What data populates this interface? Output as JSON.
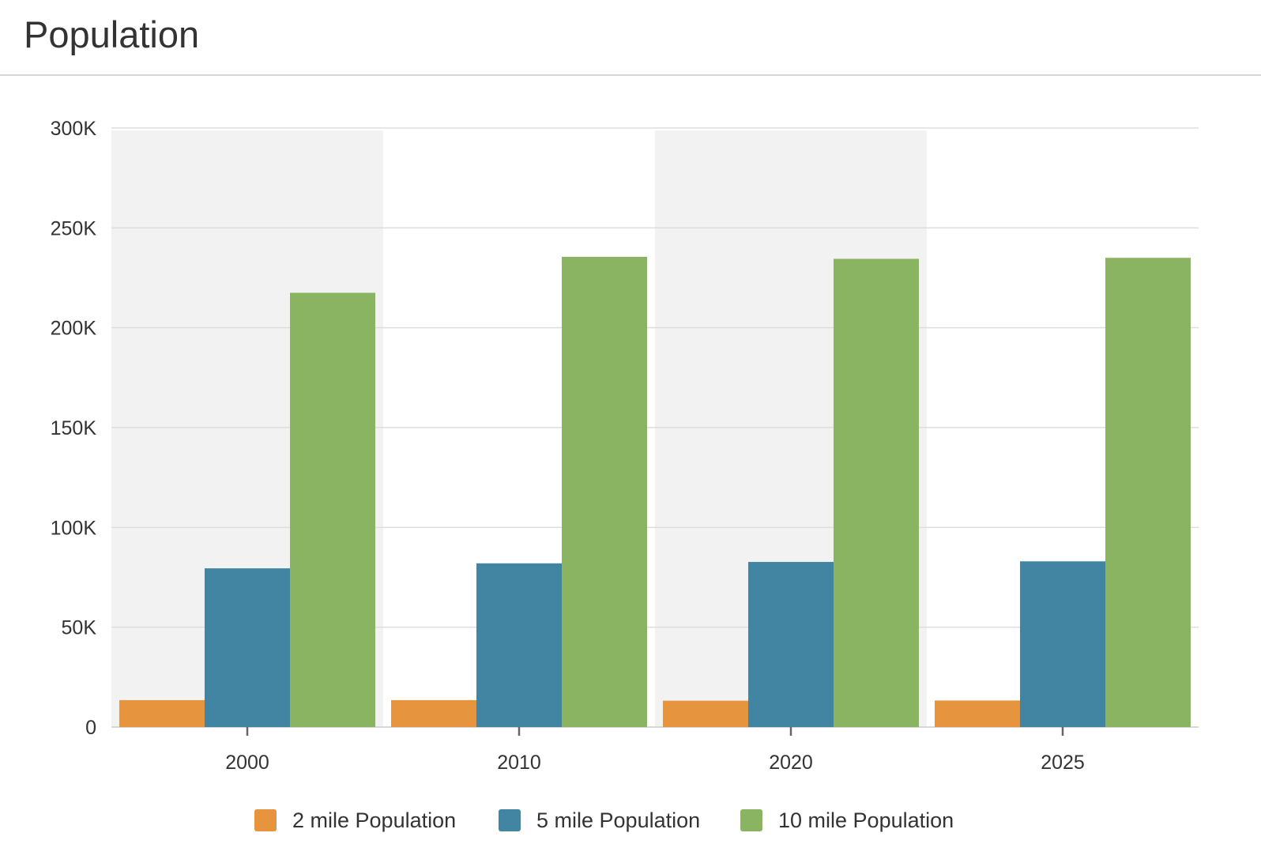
{
  "header": {
    "title": "Population"
  },
  "chart_data": {
    "type": "bar",
    "categories": [
      "2000",
      "2010",
      "2020",
      "2025"
    ],
    "series": [
      {
        "name": "2 mile Population",
        "color": "#e6943e",
        "values": [
          13500,
          13500,
          13200,
          13300
        ]
      },
      {
        "name": "5 mile Population",
        "color": "#4285a3",
        "values": [
          79500,
          82000,
          82700,
          83000
        ]
      },
      {
        "name": "10 mile Population",
        "color": "#8ab462",
        "values": [
          217500,
          235500,
          234500,
          235000
        ]
      }
    ],
    "ylim": [
      0,
      300000
    ],
    "yticks": [
      {
        "value": 0,
        "label": "0"
      },
      {
        "value": 50000,
        "label": "50K"
      },
      {
        "value": 100000,
        "label": "100K"
      },
      {
        "value": 150000,
        "label": "150K"
      },
      {
        "value": 200000,
        "label": "200K"
      },
      {
        "value": 250000,
        "label": "250K"
      },
      {
        "value": 300000,
        "label": "300K"
      }
    ],
    "grid": true,
    "legend_position": "bottom-center",
    "colors": {
      "band": "#f2f2f2",
      "grid": "#dddddd",
      "axis": "#cccccc",
      "tick": "#666666"
    }
  }
}
